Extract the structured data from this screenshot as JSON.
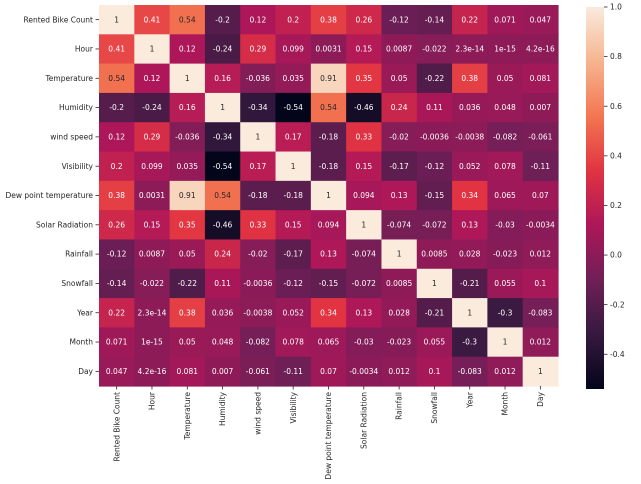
{
  "chart_data": {
    "type": "heatmap",
    "title": "",
    "xlabel": "",
    "ylabel": "",
    "labels": [
      "Rented Bike Count",
      "Hour",
      "Temperature",
      "Humidity",
      "wind speed",
      "Visibility",
      "Dew point temperature",
      "Solar Radiation",
      "Rainfall",
      "Snowfall",
      "Year",
      "Month",
      "Day"
    ],
    "values": [
      [
        1,
        0.41,
        0.54,
        -0.2,
        0.12,
        0.2,
        0.38,
        0.26,
        -0.12,
        -0.14,
        0.22,
        0.071,
        0.047
      ],
      [
        0.41,
        1,
        0.12,
        -0.24,
        0.29,
        0.099,
        0.0031,
        0.15,
        0.0087,
        -0.022,
        2.3e-14,
        1e-15,
        4.2e-16
      ],
      [
        0.54,
        0.12,
        1,
        0.16,
        -0.036,
        0.035,
        0.91,
        0.35,
        0.05,
        -0.22,
        0.38,
        0.05,
        0.081
      ],
      [
        -0.2,
        -0.24,
        0.16,
        1,
        -0.34,
        -0.54,
        0.54,
        -0.46,
        0.24,
        0.11,
        0.036,
        0.048,
        0.007
      ],
      [
        0.12,
        0.29,
        -0.036,
        -0.34,
        1,
        0.17,
        -0.18,
        0.33,
        -0.02,
        -0.0036,
        -0.0038,
        -0.082,
        -0.061
      ],
      [
        0.2,
        0.099,
        0.035,
        -0.54,
        0.17,
        1,
        -0.18,
        0.15,
        -0.17,
        -0.12,
        0.052,
        0.078,
        -0.11
      ],
      [
        0.38,
        0.0031,
        0.91,
        0.54,
        -0.18,
        -0.18,
        1,
        0.094,
        0.13,
        -0.15,
        0.34,
        0.065,
        0.07
      ],
      [
        0.26,
        0.15,
        0.35,
        -0.46,
        0.33,
        0.15,
        0.094,
        1,
        -0.074,
        -0.072,
        0.13,
        -0.03,
        -0.0034
      ],
      [
        -0.12,
        0.0087,
        0.05,
        0.24,
        -0.02,
        -0.17,
        0.13,
        -0.074,
        1,
        0.0085,
        0.028,
        -0.023,
        0.012
      ],
      [
        -0.14,
        -0.022,
        -0.22,
        0.11,
        -0.0036,
        -0.12,
        -0.15,
        -0.072,
        0.0085,
        1,
        -0.21,
        0.055,
        0.1
      ],
      [
        0.22,
        2.3e-14,
        0.38,
        0.036,
        -0.0038,
        0.052,
        0.34,
        0.13,
        0.028,
        -0.21,
        1,
        -0.3,
        -0.083
      ],
      [
        0.071,
        1e-15,
        0.05,
        0.048,
        -0.082,
        0.078,
        0.065,
        -0.03,
        -0.023,
        0.055,
        -0.3,
        1,
        0.012
      ],
      [
        0.047,
        4.2e-16,
        0.081,
        0.007,
        -0.061,
        -0.11,
        0.07,
        -0.0034,
        0.012,
        0.1,
        -0.083,
        0.012,
        1
      ]
    ],
    "annotations": [
      [
        "1",
        "0.41",
        "0.54",
        "-0.2",
        "0.12",
        "0.2",
        "0.38",
        "0.26",
        "-0.12",
        "-0.14",
        "0.22",
        "0.071",
        "0.047"
      ],
      [
        "0.41",
        "1",
        "0.12",
        "-0.24",
        "0.29",
        "0.099",
        "0.0031",
        "0.15",
        "0.0087",
        "-0.022",
        "2.3e-14",
        "1e-15",
        "4.2e-16"
      ],
      [
        "0.54",
        "0.12",
        "1",
        "0.16",
        "-0.036",
        "0.035",
        "0.91",
        "0.35",
        "0.05",
        "-0.22",
        "0.38",
        "0.05",
        "0.081"
      ],
      [
        "-0.2",
        "-0.24",
        "0.16",
        "1",
        "-0.34",
        "-0.54",
        "0.54",
        "-0.46",
        "0.24",
        "0.11",
        "0.036",
        "0.048",
        "0.007"
      ],
      [
        "0.12",
        "0.29",
        "-0.036",
        "-0.34",
        "1",
        "0.17",
        "-0.18",
        "0.33",
        "-0.02",
        "-0.0036",
        "-0.0038",
        "-0.082",
        "-0.061"
      ],
      [
        "0.2",
        "0.099",
        "0.035",
        "-0.54",
        "0.17",
        "1",
        "-0.18",
        "0.15",
        "-0.17",
        "-0.12",
        "0.052",
        "0.078",
        "-0.11"
      ],
      [
        "0.38",
        "0.0031",
        "0.91",
        "0.54",
        "-0.18",
        "-0.18",
        "1",
        "0.094",
        "0.13",
        "-0.15",
        "0.34",
        "0.065",
        "0.07"
      ],
      [
        "0.26",
        "0.15",
        "0.35",
        "-0.46",
        "0.33",
        "0.15",
        "0.094",
        "1",
        "-0.074",
        "-0.072",
        "0.13",
        "-0.03",
        "-0.0034"
      ],
      [
        "-0.12",
        "0.0087",
        "0.05",
        "0.24",
        "-0.02",
        "-0.17",
        "0.13",
        "-0.074",
        "1",
        "0.0085",
        "0.028",
        "-0.023",
        "0.012"
      ],
      [
        "-0.14",
        "-0.022",
        "-0.22",
        "0.11",
        "-0.0036",
        "-0.12",
        "-0.15",
        "-0.072",
        "0.0085",
        "1",
        "-0.21",
        "0.055",
        "0.1"
      ],
      [
        "0.22",
        "2.3e-14",
        "0.38",
        "0.036",
        "-0.0038",
        "0.052",
        "0.34",
        "0.13",
        "0.028",
        "-0.21",
        "1",
        "-0.3",
        "-0.083"
      ],
      [
        "0.071",
        "1e-15",
        "0.05",
        "0.048",
        "-0.082",
        "0.078",
        "0.065",
        "-0.03",
        "-0.023",
        "0.055",
        "-0.3",
        "1",
        "0.012"
      ],
      [
        "0.047",
        "4.2e-16",
        "0.081",
        "0.007",
        "-0.061",
        "-0.11",
        "0.07",
        "-0.0034",
        "0.012",
        "0.1",
        "-0.083",
        "0.012",
        "1"
      ]
    ],
    "vmin": -0.54,
    "vmax": 1.0,
    "colormap": "rocket",
    "colormap_stops": [
      "#03051a",
      "#35193e",
      "#701f57",
      "#ad1759",
      "#e13342",
      "#f37651",
      "#f6b48f",
      "#faebdd"
    ],
    "colorbar_ticks": [
      "1.0",
      "0.8",
      "0.6",
      "0.4",
      "0.2",
      "0.0",
      "-0.2",
      "-0.4"
    ],
    "colorbar_tick_values": [
      1.0,
      0.8,
      0.6,
      0.4,
      0.2,
      0.0,
      -0.2,
      -0.4
    ],
    "legend": "colorbar on right",
    "grid": false
  }
}
